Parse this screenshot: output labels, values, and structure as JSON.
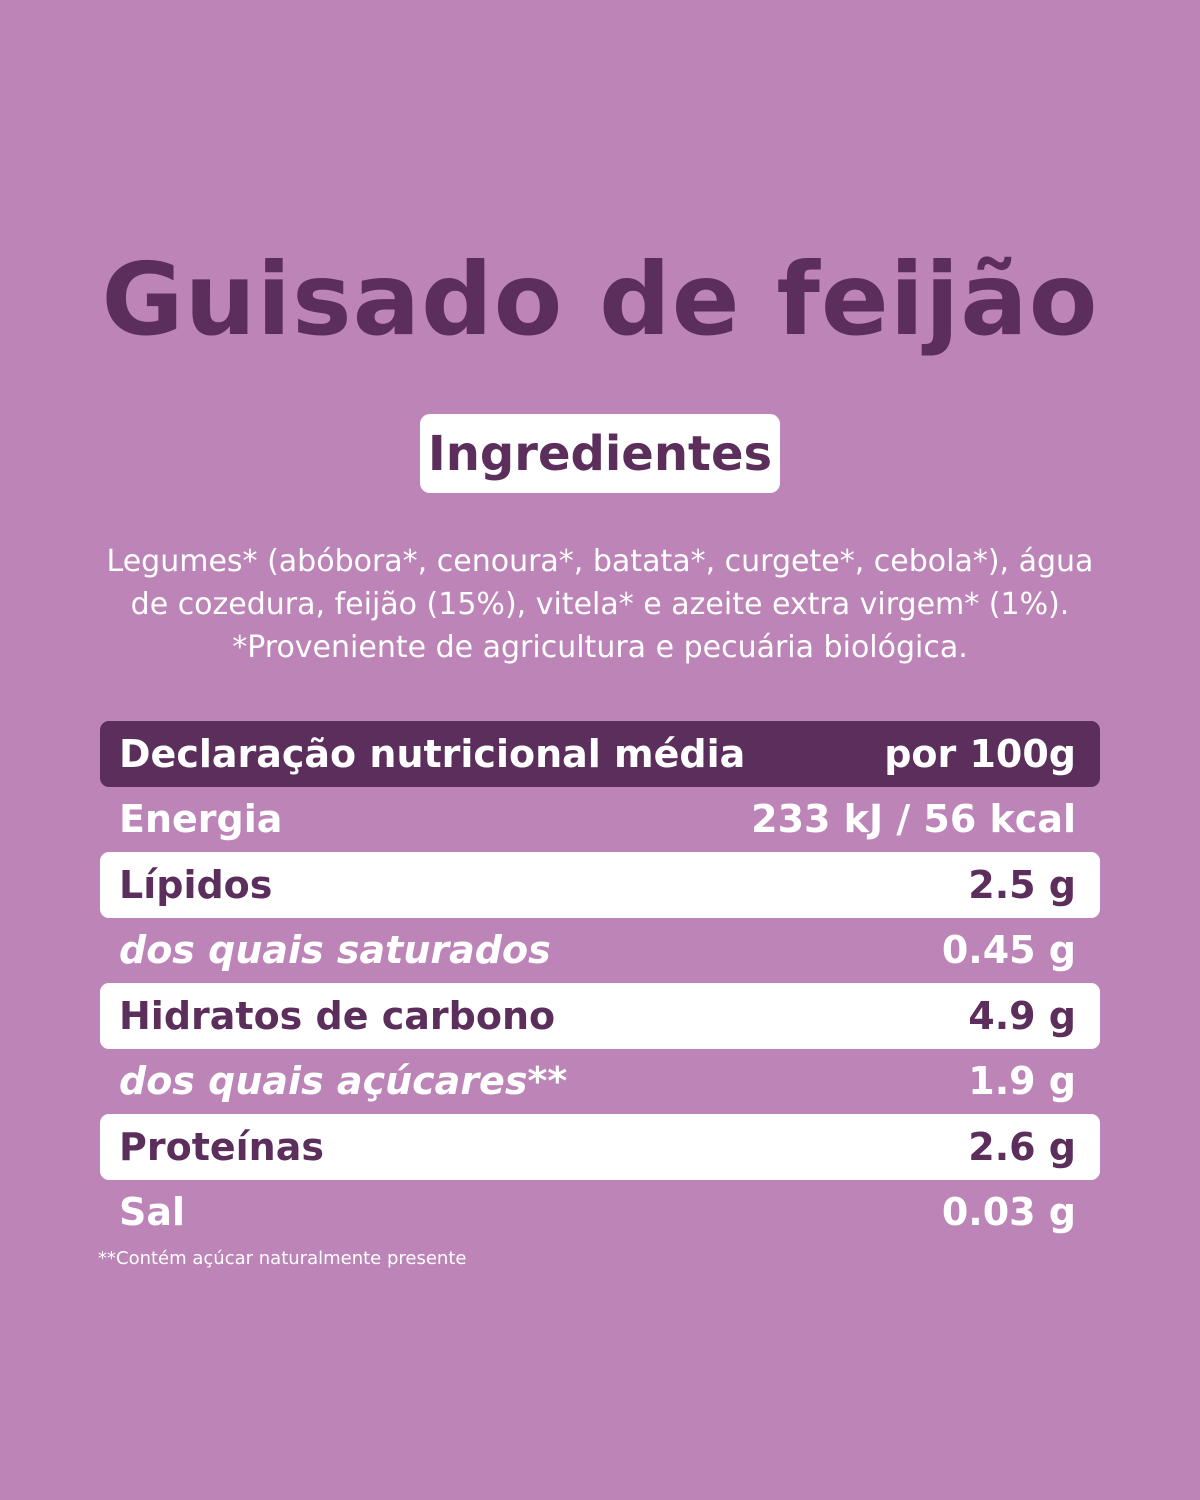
{
  "title": "Guisado de feijão",
  "ingredients_heading": "Ingredientes",
  "ingredients_lines": [
    "Legumes* (abóbora*, cenoura*, batata*, curgete*, cebola*), água",
    "de cozedura, feijão (15%), vitela* e azeite extra virgem* (1%).",
    "*Proveniente de agricultura e pecuária biológica."
  ],
  "nutrition": {
    "header": {
      "label": "Declaração nutricional média",
      "value": "por 100g"
    },
    "rows": [
      {
        "label": "Energia",
        "value": "233 kJ / 56 kcal"
      },
      {
        "label": "Lípidos",
        "value": "2.5 g"
      },
      {
        "label": "dos quais saturados",
        "value": "0.45 g"
      },
      {
        "label": "Hidratos de carbono",
        "value": "4.9 g"
      },
      {
        "label": "dos quais açúcares**",
        "value": "1.9 g"
      },
      {
        "label": "Proteínas",
        "value": "2.6 g"
      },
      {
        "label": "Sal",
        "value": "0.03 g"
      }
    ]
  },
  "footnote": "**Contém açúcar naturalmente presente",
  "colors": {
    "background": "#bd84b8",
    "dark_purple": "#5b2e5c",
    "white": "#ffffff"
  }
}
